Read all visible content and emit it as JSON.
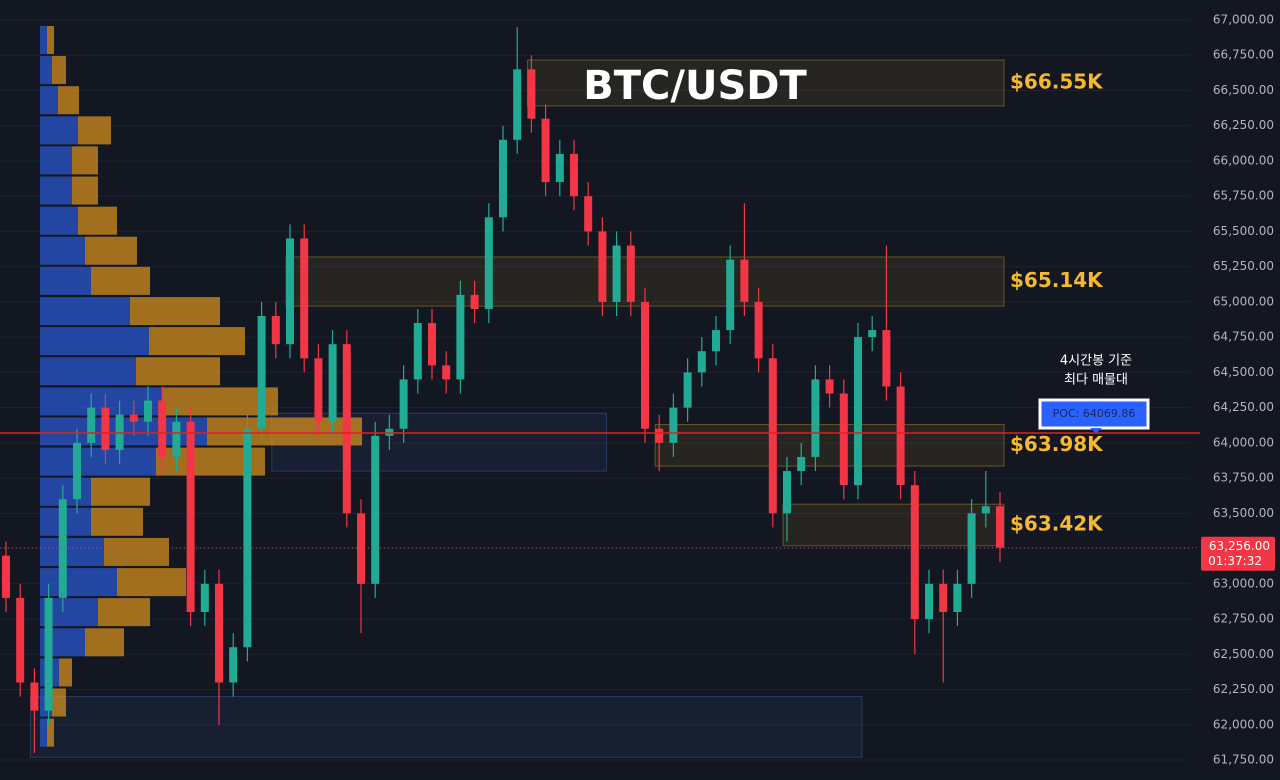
{
  "chart_data": {
    "type": "candlestick",
    "title": "BTC/USDT",
    "open": [
      63200,
      62900,
      62300,
      62100,
      62900,
      63600,
      64000,
      64250,
      63950,
      64200,
      64150,
      64300,
      63900,
      64150,
      62800,
      63000,
      62300,
      62550,
      64100,
      64900,
      64700,
      65450,
      64600,
      64150,
      64700,
      63500,
      63000,
      64050,
      64100,
      64450,
      64850,
      64550,
      64450,
      65050,
      64950,
      65600,
      66150,
      66650,
      66300,
      65850,
      66050,
      65750,
      65500,
      65000,
      65400,
      65000,
      64100,
      64000,
      64250,
      64500,
      64650,
      64800,
      65300,
      65000,
      64600,
      63500,
      63800,
      63900,
      64450,
      64350,
      63700,
      64750,
      64800,
      64400,
      63700,
      62750,
      63000,
      62800,
      63000,
      63500,
      63550
    ],
    "high": [
      63300,
      63000,
      62400,
      63000,
      63700,
      64100,
      64350,
      64350,
      64300,
      64300,
      64400,
      64400,
      64250,
      64250,
      63100,
      63100,
      62650,
      64200,
      65000,
      65000,
      65550,
      65550,
      64700,
      64800,
      64800,
      63600,
      64150,
      64200,
      64550,
      64950,
      64950,
      64650,
      65150,
      65150,
      65700,
      66250,
      66950,
      66750,
      66400,
      66150,
      66150,
      65850,
      65600,
      65500,
      65500,
      65100,
      64200,
      64350,
      64600,
      64750,
      64900,
      65400,
      65700,
      65100,
      64700,
      63900,
      64000,
      64550,
      64550,
      64450,
      64850,
      64900,
      65400,
      64500,
      63800,
      63100,
      63100,
      63100,
      63600,
      63800,
      63650
    ],
    "low": [
      62800,
      62200,
      61800,
      62000,
      62800,
      63500,
      63900,
      63850,
      63850,
      64050,
      64050,
      63800,
      63800,
      62700,
      62700,
      62000,
      62200,
      62450,
      64000,
      64600,
      64600,
      64500,
      64050,
      64050,
      63400,
      62650,
      62900,
      63950,
      64000,
      64350,
      64450,
      64350,
      64350,
      64850,
      64850,
      65500,
      66050,
      66200,
      65750,
      65750,
      65650,
      65400,
      64900,
      64900,
      64900,
      64000,
      63800,
      63900,
      64150,
      64400,
      64550,
      64700,
      64900,
      64500,
      63400,
      63300,
      63700,
      63800,
      64250,
      63600,
      63600,
      64650,
      64300,
      63600,
      62500,
      62650,
      62300,
      62700,
      62900,
      63400,
      63156
    ],
    "close": [
      62900,
      62300,
      62100,
      62900,
      63600,
      64000,
      64250,
      63950,
      64200,
      64150,
      64300,
      63900,
      64150,
      62800,
      63000,
      62300,
      62550,
      64100,
      64900,
      64700,
      65450,
      64600,
      64150,
      64700,
      63500,
      63000,
      64050,
      64100,
      64450,
      64850,
      64550,
      64450,
      65050,
      64950,
      65600,
      66150,
      66650,
      66300,
      65850,
      66050,
      65750,
      65500,
      65000,
      65400,
      65000,
      64100,
      64000,
      64250,
      64500,
      64650,
      64800,
      65300,
      65000,
      64600,
      63500,
      63800,
      63900,
      64450,
      64350,
      63700,
      64750,
      64800,
      64400,
      63700,
      62750,
      63000,
      62800,
      63000,
      63500,
      63550,
      63256
    ],
    "up_color": "#22ab94",
    "down_color": "#f23645",
    "ylim": [
      61750,
      67000
    ],
    "yticks": [
      {
        "value": 61750,
        "label": "61,750.00"
      },
      {
        "value": 62000,
        "label": "62,000.00"
      },
      {
        "value": 62250,
        "label": "62,250.00"
      },
      {
        "value": 62500,
        "label": "62,500.00"
      },
      {
        "value": 62750,
        "label": "62,750.00"
      },
      {
        "value": 63000,
        "label": "63,000.00"
      },
      {
        "value": 63250,
        "label": "63,250.00"
      },
      {
        "value": 63500,
        "label": "63,500.00"
      },
      {
        "value": 63750,
        "label": "63,750.00"
      },
      {
        "value": 64000,
        "label": "64,000.00"
      },
      {
        "value": 64250,
        "label": "64,250.00"
      },
      {
        "value": 64500,
        "label": "64,500.00"
      },
      {
        "value": 64750,
        "label": "64,750.00"
      },
      {
        "value": 65000,
        "label": "65,000.00"
      },
      {
        "value": 65250,
        "label": "65,250.00"
      },
      {
        "value": 65500,
        "label": "65,500.00"
      },
      {
        "value": 65750,
        "label": "65,750.00"
      },
      {
        "value": 66000,
        "label": "66,000.00"
      },
      {
        "value": 66250,
        "label": "66,250.00"
      },
      {
        "value": 66500,
        "label": "66,500.00"
      },
      {
        "value": 66750,
        "label": "66,750.00"
      },
      {
        "value": 67000,
        "label": "67,000.00"
      }
    ],
    "grid": true,
    "volume_profile": {
      "buy_color": "#2a5bd7",
      "sell_color": "#e0961c",
      "levels": [
        66858,
        66645,
        66431,
        66217,
        66004,
        65790,
        65576,
        65363,
        65149,
        64935,
        64722,
        64508,
        64294,
        64081,
        63867,
        63653,
        63440,
        63226,
        63012,
        62799,
        62585,
        62371,
        62158,
        61944
      ],
      "buy": [
        7,
        12,
        18,
        38,
        32,
        32,
        38,
        45,
        51,
        90,
        109,
        96,
        122,
        167,
        116,
        51,
        51,
        64,
        77,
        58,
        45,
        19,
        12,
        7
      ],
      "sell": [
        7,
        14,
        21,
        33,
        26,
        26,
        39,
        52,
        59,
        90,
        96,
        84,
        116,
        155,
        109,
        59,
        52,
        65,
        69,
        52,
        39,
        13,
        14,
        7
      ]
    },
    "zones": [
      {
        "label": "$66.55K",
        "top": 66716,
        "bottom": 66390,
        "start": 37,
        "end": 70,
        "color": "#f5b82e"
      },
      {
        "label": "$65.14K",
        "top": 65319,
        "bottom": 64970,
        "start": 20,
        "end": 70,
        "color": "#f5b82e"
      },
      {
        "label": "$63.98K",
        "top": 64130,
        "bottom": 63835,
        "start": 46,
        "end": 70,
        "color": "#f5b82e"
      },
      {
        "label": "$63.42K",
        "top": 63565,
        "bottom": 63270,
        "start": 55,
        "end": 70,
        "color": "#f5b82e"
      },
      {
        "top": 64210,
        "bottom": 63800,
        "start": 19,
        "end": 42,
        "color": "#4a7bd0"
      },
      {
        "top": 62200,
        "bottom": 61770,
        "start": 2,
        "end": 60,
        "color": "#4a7bd0"
      }
    ],
    "poc": {
      "value": 64069.86,
      "label": "POC: 64069.86",
      "color": "#e02020"
    },
    "annotation": [
      "4시간봉 기준",
      "최다 매물대"
    ],
    "last_price": {
      "value": 63256,
      "label": "63,256.00",
      "timer": "01:37:32"
    }
  }
}
